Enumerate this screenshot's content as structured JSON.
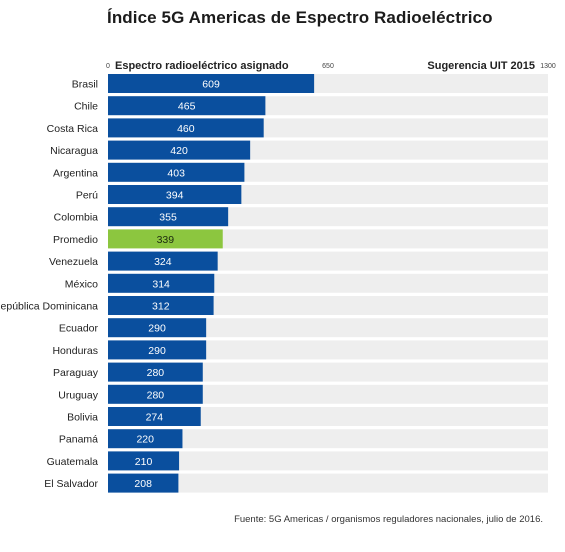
{
  "title": "Índice 5G Americas de Espectro Radioeléctrico",
  "source": "Fuente: 5G Americas / organismos reguladores nacionales, julio de 2016.",
  "colors": {
    "bar": "#0a4f9e",
    "highlight": "#8cc63f",
    "track": "#eeeeee",
    "bar_text": "#ffffff"
  },
  "chart_data": {
    "type": "bar",
    "orientation": "horizontal",
    "header_left": "Espectro radioeléctrico asignado",
    "header_right": "Sugerencia UIT 2015",
    "ticks": [
      "0",
      "650",
      "1300"
    ],
    "xlim": [
      0,
      1300
    ],
    "highlight_category": "Promedio",
    "categories": [
      "Brasil",
      "Chile",
      "Costa Rica",
      "Nicaragua",
      "Argentina",
      "Perú",
      "Colombia",
      "Promedio",
      "Venezuela",
      "México",
      "República Dominicana",
      "Ecuador",
      "Honduras",
      "Paraguay",
      "Uruguay",
      "Bolivia",
      "Panamá",
      "Guatemala",
      "El Salvador"
    ],
    "values": [
      609,
      465,
      460,
      420,
      403,
      394,
      355,
      339,
      324,
      314,
      312,
      290,
      290,
      280,
      280,
      274,
      220,
      210,
      208
    ]
  }
}
